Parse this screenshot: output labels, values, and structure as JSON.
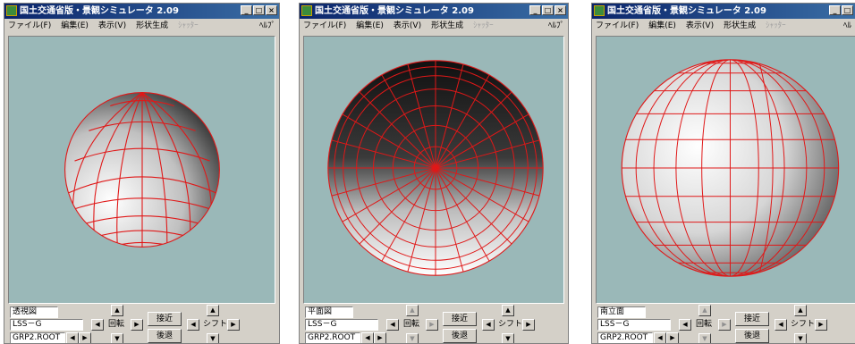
{
  "windows": [
    {
      "title": "国土交通省版・景観シミュレータ 2.09",
      "menu": [
        "ファイル(F)",
        "編集(E)",
        "表示(V)",
        "形状生成"
      ],
      "menu_disabled": "ｼｬｯﾀｰ",
      "help": "ﾍﾙﾌﾟ",
      "view_name": "透視図",
      "object_name": "LSS－G",
      "root_name": "GRP2.ROOT",
      "rotate_label": "回転",
      "shift_label": "シフト",
      "near_label": "接近",
      "far_label": "後退"
    },
    {
      "title": "国土交通省版・景観シミュレータ 2.09",
      "menu": [
        "ファイル(F)",
        "編集(E)",
        "表示(V)",
        "形状生成"
      ],
      "menu_disabled": "ｼｬｯﾀｰ",
      "help": "ﾍﾙﾌﾟ",
      "view_name": "平面図",
      "object_name": "LSS－G",
      "root_name": "GRP2.ROOT",
      "rotate_label": "回転",
      "shift_label": "シフト",
      "near_label": "接近",
      "far_label": "後退"
    },
    {
      "title": "国土交通省版・景観シミュレータ 2.09",
      "menu": [
        "ファイル(F)",
        "編集(E)",
        "表示(V)",
        "形状生成"
      ],
      "menu_disabled": "ｼｬｯﾀｰ",
      "help": "ﾍﾙ",
      "view_name": "南立面",
      "object_name": "LSS－G",
      "root_name": "GRP2.ROOT",
      "rotate_label": "回転",
      "shift_label": "シフト",
      "near_label": "接近",
      "far_label": "後退"
    }
  ],
  "colors": {
    "viewport_bg": "#9ab8b8",
    "wireframe": "#e01818",
    "titlebar": "#0a246a"
  }
}
